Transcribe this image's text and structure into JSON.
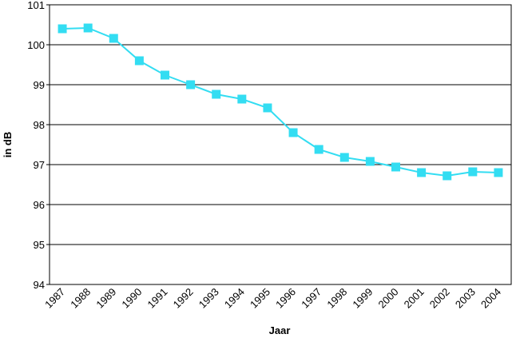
{
  "chart_data": {
    "type": "line",
    "x_label": "Jaar",
    "y_label": "in dB",
    "categories": [
      "1987",
      "1988",
      "1989",
      "1990",
      "1991",
      "1992",
      "1993",
      "1994",
      "1995",
      "1996",
      "1997",
      "1998",
      "1999",
      "2000",
      "2001",
      "2002",
      "2003",
      "2004"
    ],
    "values": [
      100.4,
      100.42,
      100.16,
      99.6,
      99.24,
      99.0,
      98.76,
      98.64,
      98.42,
      97.8,
      97.38,
      97.18,
      97.08,
      96.94,
      96.8,
      96.72,
      96.82,
      96.8
    ],
    "color": "#33ddf2",
    "ylim": [
      94,
      101
    ],
    "yticks": [
      94,
      95,
      96,
      97,
      98,
      99,
      100,
      101
    ],
    "grid": true
  }
}
